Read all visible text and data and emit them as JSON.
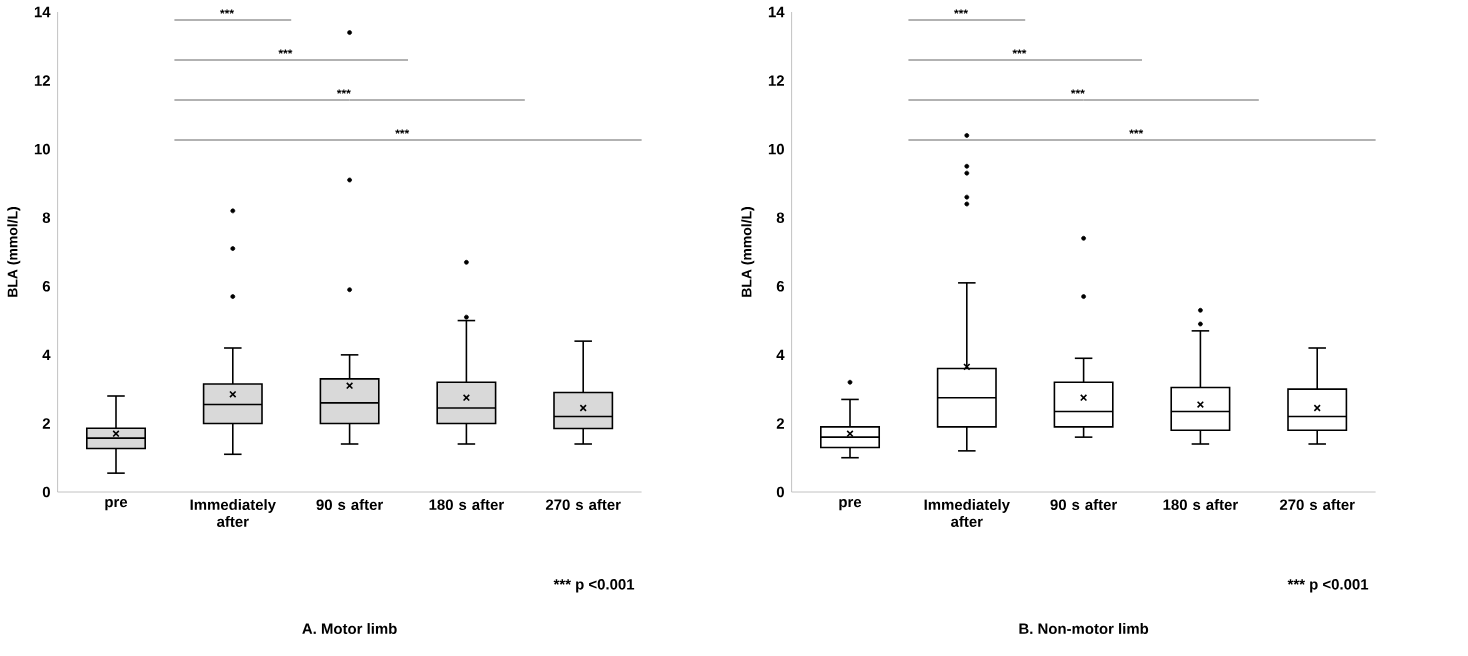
{
  "chart_data": [
    {
      "type": "box",
      "title": "A. Motor limb",
      "ylabel": "BLA (mmol/L)",
      "categories": [
        "pre",
        "Immediately after",
        "90 s after",
        "180 s after",
        "270 s after"
      ],
      "ylim": [
        0,
        14
      ],
      "yticks": [
        0,
        2,
        4,
        6,
        8,
        10,
        12,
        14
      ],
      "color": "#d9d9d9",
      "marker": "cross",
      "boxes": [
        {
          "low": 0.55,
          "q1": 1.27,
          "median": 1.57,
          "q3": 1.86,
          "high": 2.8,
          "mean": 1.7
        },
        {
          "low": 1.1,
          "q1": 2.0,
          "median": 2.55,
          "q3": 3.15,
          "high": 4.2,
          "mean": 2.85,
          "outliers": [
            5.7,
            7.1,
            8.2
          ]
        },
        {
          "low": 1.4,
          "q1": 2.0,
          "median": 2.6,
          "q3": 3.3,
          "high": 4.0,
          "mean": 3.1,
          "outliers": [
            5.9,
            9.1,
            13.4
          ]
        },
        {
          "low": 1.4,
          "q1": 2.0,
          "median": 2.45,
          "q3": 3.2,
          "high": 5.0,
          "mean": 2.75,
          "outliers": [
            5.1,
            6.7
          ]
        },
        {
          "low": 1.4,
          "q1": 1.85,
          "median": 2.2,
          "q3": 2.9,
          "high": 4.4,
          "mean": 2.45
        }
      ],
      "annotations": [
        "***",
        "***",
        "***",
        "***",
        "*** p <0.001"
      ]
    },
    {
      "type": "box",
      "title": "B. Non-motor limb",
      "ylabel": "BLA (mmol/L)",
      "categories": [
        "pre",
        "Immediately after",
        "90 s after",
        "180 s after",
        "270 s after"
      ],
      "ylim": [
        0,
        14
      ],
      "yticks": [
        0,
        2,
        4,
        6,
        8,
        10,
        12,
        14
      ],
      "color": "#ffffff",
      "marker": "cross",
      "boxes": [
        {
          "low": 1.0,
          "q1": 1.3,
          "median": 1.6,
          "q3": 1.9,
          "high": 2.7,
          "mean": 1.7,
          "outliers": [
            3.2
          ]
        },
        {
          "low": 1.2,
          "q1": 1.9,
          "median": 2.75,
          "q3": 3.6,
          "high": 6.1,
          "mean": 3.65,
          "outliers": [
            8.4,
            8.6,
            9.3,
            9.5,
            10.4
          ]
        },
        {
          "low": 1.6,
          "q1": 1.9,
          "median": 2.35,
          "q3": 3.2,
          "high": 3.9,
          "mean": 2.75,
          "outliers": [
            5.7,
            7.4
          ]
        },
        {
          "low": 1.4,
          "q1": 1.8,
          "median": 2.35,
          "q3": 3.05,
          "high": 4.7,
          "mean": 2.55,
          "outliers": [
            4.9,
            5.3
          ]
        },
        {
          "low": 1.4,
          "q1": 1.8,
          "median": 2.2,
          "q3": 3.0,
          "high": 4.2,
          "mean": 2.45
        }
      ],
      "annotations": [
        "***",
        "***",
        "***",
        "***",
        "*** p <0.001"
      ]
    }
  ]
}
